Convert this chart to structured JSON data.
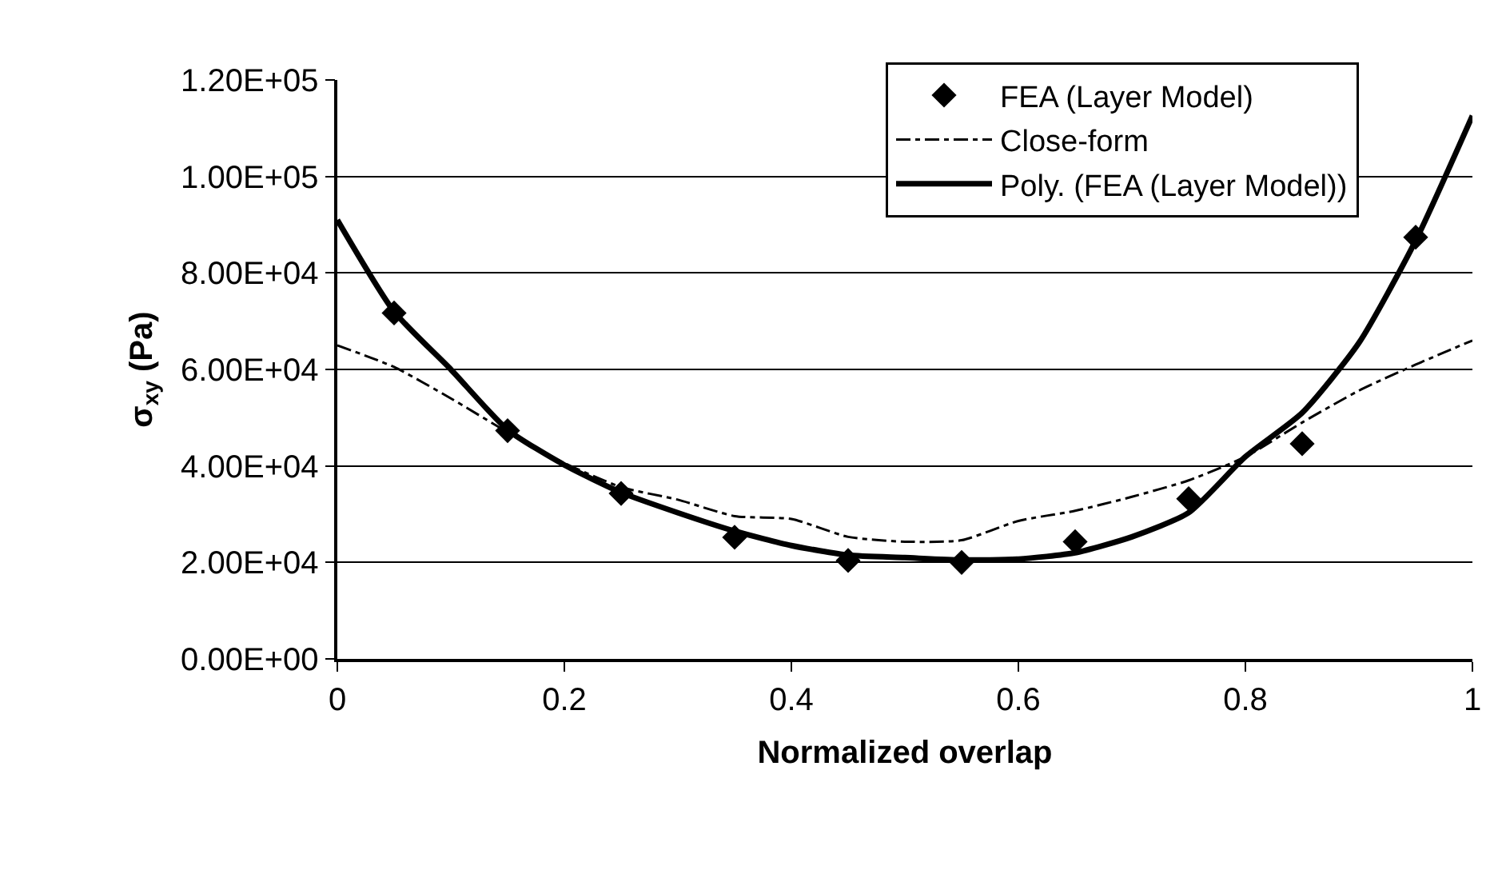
{
  "chart_data": {
    "type": "scatter",
    "xlabel": "Normalized overlap",
    "ylabel": "σ$_{xy}$ (Pa)",
    "xlim": [
      0,
      1
    ],
    "xticks": [
      0,
      0.2,
      0.4,
      0.6,
      0.8,
      1
    ],
    "ylim": [
      0,
      120000
    ],
    "yticks": [
      {
        "value": 0,
        "label": "0.00E+00"
      },
      {
        "value": 20000,
        "label": "2.00E+04"
      },
      {
        "value": 40000,
        "label": "4.00E+04"
      },
      {
        "value": 60000,
        "label": "6.00E+04"
      },
      {
        "value": 80000,
        "label": "8.00E+04"
      },
      {
        "value": 100000,
        "label": "1.00E+05"
      },
      {
        "value": 120000,
        "label": "1.20E+05"
      }
    ],
    "grid": "y",
    "legend": "top right",
    "series": [
      {
        "name": "FEA (Layer Model)",
        "marker": "diamond",
        "color": "#000000",
        "x": [
          0.05,
          0.15,
          0.25,
          0.35,
          0.45,
          0.55,
          0.65,
          0.75,
          0.85,
          0.95
        ],
        "values": [
          71700,
          47300,
          34300,
          25200,
          20400,
          20000,
          24300,
          33200,
          44600,
          87400
        ]
      },
      {
        "name": "Close-form",
        "type": "line",
        "line_style": "dashed",
        "color": "#000000",
        "x": [
          0,
          0.05,
          0.1,
          0.15,
          0.2,
          0.25,
          0.3,
          0.35,
          0.4,
          0.45,
          0.5,
          0.55,
          0.6,
          0.65,
          0.7,
          0.75,
          0.8,
          0.85,
          0.9,
          0.95,
          1
        ],
        "values": [
          65000,
          60500,
          54000,
          47000,
          40600,
          35600,
          33000,
          29600,
          29000,
          25300,
          24300,
          24600,
          28600,
          30700,
          33600,
          37000,
          41900,
          49000,
          55600,
          61000,
          66000
        ]
      },
      {
        "name": "Poly. (FEA (Layer Model))",
        "type": "line",
        "line_style": "solid",
        "color": "#000000",
        "x": [
          0,
          0.05,
          0.1,
          0.15,
          0.2,
          0.25,
          0.3,
          0.35,
          0.4,
          0.45,
          0.5,
          0.55,
          0.6,
          0.65,
          0.7,
          0.75,
          0.8,
          0.85,
          0.9,
          0.95,
          1
        ],
        "values": [
          91000,
          72000,
          60000,
          47500,
          40200,
          34500,
          30300,
          26500,
          23500,
          21500,
          21000,
          20500,
          20700,
          22000,
          25300,
          30300,
          41900,
          51000,
          65500,
          86700,
          112600
        ]
      }
    ]
  }
}
